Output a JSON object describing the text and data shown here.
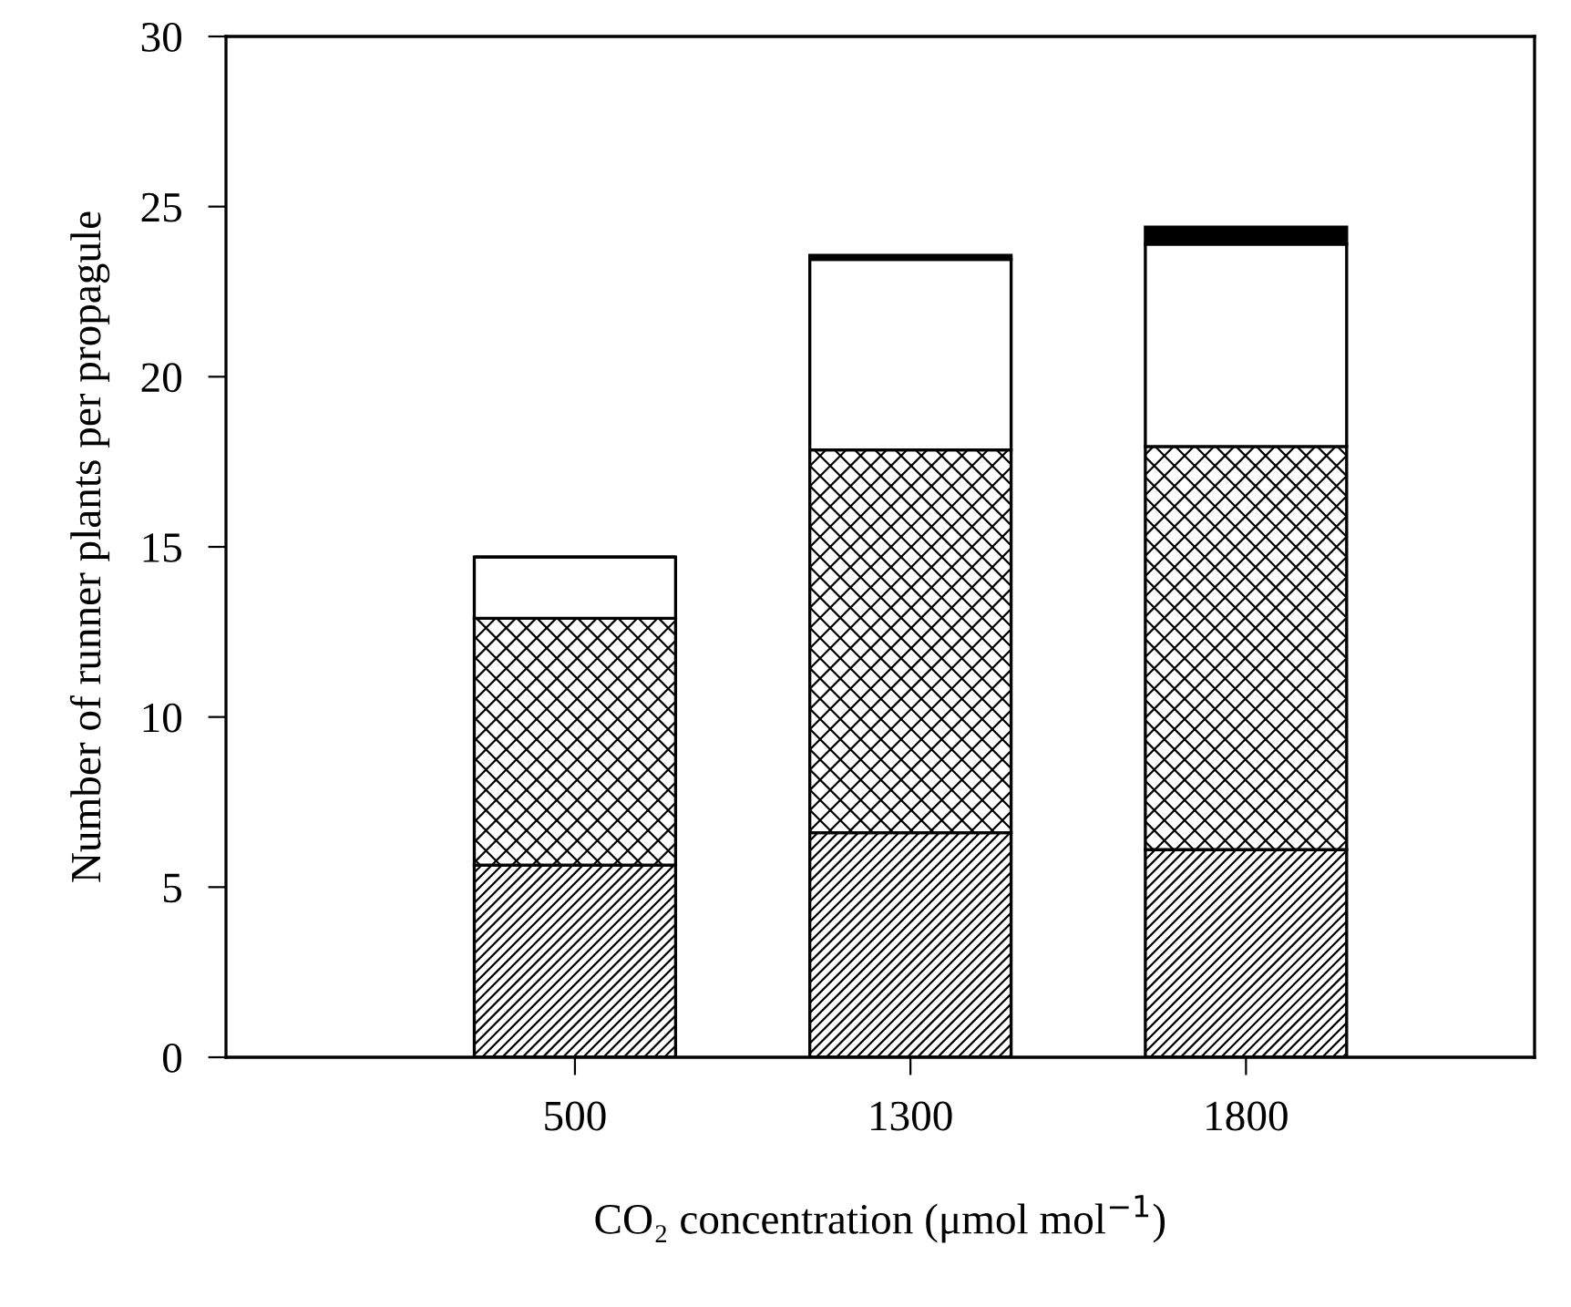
{
  "chart_data": {
    "type": "bar",
    "stacked": true,
    "xlabel": "CO₂ concentration (μmol mol$^{−1}$)",
    "ylabel": "Number of runner plants per propagule",
    "categories": [
      "500",
      "1300",
      "1800"
    ],
    "series": [
      {
        "color": "#000000",
        "values": [
          5.65,
          6.6,
          6.1
        ]
      },
      {
        "color": "#000000",
        "values": [
          7.25,
          11.25,
          11.85
        ]
      },
      {
        "color": "#ffffff",
        "values": [
          1.8,
          5.6,
          5.95
        ]
      },
      {
        "color": "#000000",
        "values": [
          0,
          0.12,
          0.5
        ]
      }
    ],
    "ylim": [
      0,
      30
    ],
    "yticks": [
      0,
      5,
      10,
      15,
      20,
      25,
      30
    ],
    "grid": false,
    "legend": false
  }
}
